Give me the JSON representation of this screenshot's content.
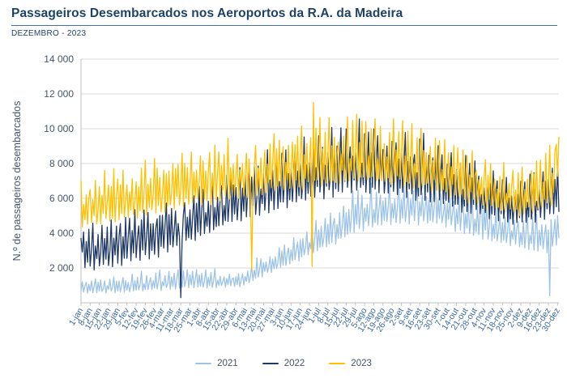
{
  "header": {
    "title": "Passageiros Desembarcados nos Aeroportos da R.A. da Madeira",
    "subtitle": "DEZEMBRO - 2023"
  },
  "colors": {
    "title": "#1d4268",
    "rule": "#41719c",
    "grid": "#d9d9d9",
    "axis": "#bfbfbf",
    "y_tick_label": "#44546a",
    "x_tick_label": "#3b6aa0",
    "axis_title": "#44546a",
    "legend_text": "#44546a",
    "background": "#ffffff"
  },
  "chart_data": {
    "type": "line",
    "title": "Passageiros Desembarcados nos Aeroportos da R.A. da Madeira",
    "subtitle": "DEZEMBRO - 2023",
    "xlabel": "",
    "ylabel": "N.º de passageiros desembarcados",
    "ylim": [
      0,
      14000
    ],
    "grid": true,
    "legend_position": "bottom",
    "days": 365,
    "y_ticks": {
      "values": [
        2000,
        4000,
        6000,
        8000,
        10000,
        12000,
        14000
      ],
      "labels": [
        "2 000",
        "4 000",
        "6 000",
        "8 000",
        "10 000",
        "12 000",
        "14 000"
      ]
    },
    "x_ticks": {
      "day_index": [
        0,
        7,
        14,
        21,
        28,
        35,
        42,
        49,
        56,
        62,
        69,
        76,
        83,
        90,
        97,
        104,
        111,
        118,
        125,
        132,
        139,
        146,
        153,
        160,
        167,
        174,
        181,
        188,
        195,
        202,
        209,
        216,
        223,
        230,
        237,
        244,
        251,
        258,
        265,
        272,
        279,
        286,
        293,
        300,
        307,
        314,
        321,
        328,
        335,
        342,
        349,
        356,
        363
      ],
      "labels": [
        "1-jan",
        "8-jan",
        "15-jan",
        "22-jan",
        "29-jan",
        "5-fev",
        "12-fev",
        "19-fev",
        "26-fev",
        "4-mar",
        "11-mar",
        "18-mar",
        "25-mar",
        "1-abr",
        "8-abr",
        "15-abr",
        "22-abr",
        "29-abr",
        "6-mai",
        "13-mai",
        "20-mai",
        "27-mai",
        "3-jun",
        "10-jun",
        "17-jun",
        "24-jun",
        "1-jul",
        "8-jul",
        "15-jul",
        "22-jul",
        "29-jul",
        "5-ago",
        "12-ago",
        "19-ago",
        "26-ago",
        "2-set",
        "9-set",
        "16-set",
        "23-set",
        "30-set",
        "7-out",
        "14-out",
        "21-out",
        "28-out",
        "4-nov",
        "11-nov",
        "18-nov",
        "25-nov",
        "2-dez",
        "9-dez",
        "16-dez",
        "23-dez",
        "30-dez"
      ]
    },
    "weekday_weights": [
      0.95,
      0.18,
      0.68,
      0.3,
      0.88,
      0.22,
      0.55
    ],
    "series": [
      {
        "name": "2021",
        "color": "#9dc3e6",
        "phase": 3,
        "seed": 1,
        "envelope": [
          [
            0,
            400,
            1400
          ],
          [
            31,
            420,
            1500
          ],
          [
            59,
            500,
            1900
          ],
          [
            90,
            650,
            2000
          ],
          [
            120,
            750,
            1700
          ],
          [
            135,
            1100,
            2600
          ],
          [
            151,
            1700,
            3300
          ],
          [
            181,
            2600,
            4800
          ],
          [
            212,
            3600,
            6500
          ],
          [
            243,
            4200,
            7000
          ],
          [
            273,
            4000,
            6700
          ],
          [
            304,
            3300,
            6100
          ],
          [
            334,
            2800,
            5200
          ],
          [
            356,
            2500,
            4800
          ],
          [
            364,
            3000,
            5700
          ]
        ],
        "anomalies": [
          [
            357,
            400
          ]
        ]
      },
      {
        "name": "2022",
        "color": "#1f3864",
        "phase": 5,
        "seed": 2,
        "envelope": [
          [
            0,
            1300,
            4600
          ],
          [
            31,
            1700,
            5100
          ],
          [
            59,
            2100,
            5900
          ],
          [
            90,
            3200,
            6900
          ],
          [
            120,
            4100,
            7700
          ],
          [
            151,
            4700,
            8800
          ],
          [
            181,
            5300,
            9500
          ],
          [
            212,
            5700,
            10200
          ],
          [
            243,
            5400,
            9700
          ],
          [
            273,
            5000,
            9200
          ],
          [
            304,
            4400,
            7900
          ],
          [
            334,
            3900,
            7100
          ],
          [
            364,
            4600,
            8000
          ]
        ],
        "anomalies": [
          [
            0,
            3700
          ],
          [
            76,
            300
          ],
          [
            363,
            7900
          ]
        ]
      },
      {
        "name": "2023",
        "color": "#ffc000",
        "phase": 0,
        "seed": 3,
        "envelope": [
          [
            0,
            3800,
            7300
          ],
          [
            31,
            4100,
            7700
          ],
          [
            59,
            4500,
            8600
          ],
          [
            90,
            5000,
            9000
          ],
          [
            120,
            5400,
            9200
          ],
          [
            151,
            5700,
            9700
          ],
          [
            181,
            6000,
            10300
          ],
          [
            212,
            6200,
            10500
          ],
          [
            243,
            6100,
            10200
          ],
          [
            273,
            5700,
            9800
          ],
          [
            304,
            5000,
            8400
          ],
          [
            334,
            4500,
            7700
          ],
          [
            364,
            5200,
            9200
          ]
        ],
        "anomalies": [
          [
            0,
            7000
          ],
          [
            130,
            1900
          ],
          [
            176,
            2100
          ],
          [
            177,
            11500
          ],
          [
            362,
            9100
          ]
        ]
      }
    ]
  },
  "legend": {
    "items": [
      {
        "label": "2021",
        "color": "#9dc3e6"
      },
      {
        "label": "2022",
        "color": "#1f3864"
      },
      {
        "label": "2023",
        "color": "#ffc000"
      }
    ]
  }
}
